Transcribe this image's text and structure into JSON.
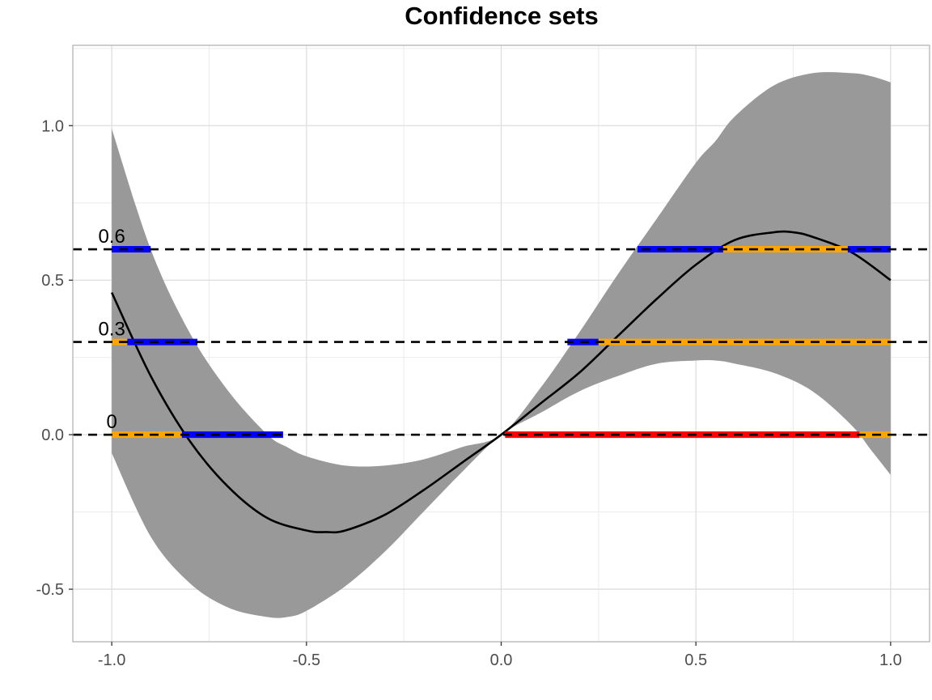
{
  "chart_data": {
    "type": "line",
    "title": "Confidence sets",
    "xlabel": "",
    "ylabel": "",
    "xlim": [
      -1.1,
      1.1
    ],
    "ylim": [
      -0.67,
      1.26
    ],
    "x_ticks": [
      -1.0,
      -0.5,
      0.0,
      0.5,
      1.0
    ],
    "x_tick_labels": [
      "-1.0",
      "-0.5",
      "0.0",
      "0.5",
      "1.0"
    ],
    "y_ticks": [
      -0.5,
      0.0,
      0.5,
      1.0
    ],
    "y_tick_labels": [
      "-0.5",
      "0.0",
      "0.5",
      "1.0"
    ],
    "grid": true,
    "colors": {
      "band": "#999999",
      "curve": "#000000",
      "blue_segment": "#0000ff",
      "orange_segment": "#ffa500",
      "red_segment": "#ff0000",
      "grid": "#ebebeb",
      "panel_border": "#b3b3b3"
    },
    "estimate_curve": {
      "x": [
        -1.0,
        -0.9,
        -0.8,
        -0.7,
        -0.6,
        -0.5,
        -0.45,
        -0.4,
        -0.3,
        -0.2,
        -0.1,
        0.0,
        0.1,
        0.2,
        0.3,
        0.4,
        0.5,
        0.6,
        0.7,
        0.75,
        0.8,
        0.9,
        1.0
      ],
      "y": [
        0.46,
        0.19,
        -0.02,
        -0.17,
        -0.27,
        -0.31,
        -0.315,
        -0.31,
        -0.26,
        -0.18,
        -0.09,
        0.0,
        0.1,
        0.2,
        0.32,
        0.44,
        0.55,
        0.63,
        0.655,
        0.655,
        0.64,
        0.59,
        0.5
      ]
    },
    "confidence_band": {
      "x": [
        -1.0,
        -0.9,
        -0.8,
        -0.7,
        -0.6,
        -0.55,
        -0.5,
        -0.4,
        -0.3,
        -0.2,
        -0.1,
        0.0,
        0.1,
        0.2,
        0.3,
        0.4,
        0.5,
        0.55,
        0.6,
        0.7,
        0.8,
        0.9,
        0.95,
        1.0
      ],
      "upper": [
        0.99,
        0.6,
        0.33,
        0.14,
        0.0,
        -0.04,
        -0.07,
        -0.1,
        -0.1,
        -0.08,
        -0.04,
        0.0,
        0.15,
        0.33,
        0.52,
        0.7,
        0.88,
        0.95,
        1.03,
        1.13,
        1.17,
        1.17,
        1.16,
        1.14
      ],
      "lower": [
        -0.06,
        -0.33,
        -0.48,
        -0.56,
        -0.59,
        -0.59,
        -0.57,
        -0.49,
        -0.38,
        -0.25,
        -0.12,
        0.0,
        0.07,
        0.14,
        0.19,
        0.23,
        0.24,
        0.24,
        0.23,
        0.2,
        0.14,
        0.03,
        -0.05,
        -0.13
      ]
    },
    "levels": [
      {
        "label": "0",
        "y": 0.0,
        "segments": [
          {
            "color": "orange",
            "x0": -1.0,
            "x1": -0.82
          },
          {
            "color": "blue",
            "x0": -0.82,
            "x1": -0.56
          },
          {
            "color": "red",
            "x0": 0.01,
            "x1": 0.92
          },
          {
            "color": "orange",
            "x0": 0.92,
            "x1": 1.0
          }
        ]
      },
      {
        "label": "0.3",
        "y": 0.3,
        "segments": [
          {
            "color": "orange",
            "x0": -1.0,
            "x1": -0.96
          },
          {
            "color": "blue",
            "x0": -0.96,
            "x1": -0.78
          },
          {
            "color": "blue",
            "x0": 0.17,
            "x1": 0.25
          },
          {
            "color": "orange",
            "x0": 0.25,
            "x1": 1.0
          }
        ]
      },
      {
        "label": "0.6",
        "y": 0.6,
        "segments": [
          {
            "color": "blue",
            "x0": -1.0,
            "x1": -0.9
          },
          {
            "color": "blue",
            "x0": 0.35,
            "x1": 0.57
          },
          {
            "color": "orange",
            "x0": 0.57,
            "x1": 0.89
          },
          {
            "color": "blue",
            "x0": 0.89,
            "x1": 1.0
          }
        ]
      }
    ]
  }
}
